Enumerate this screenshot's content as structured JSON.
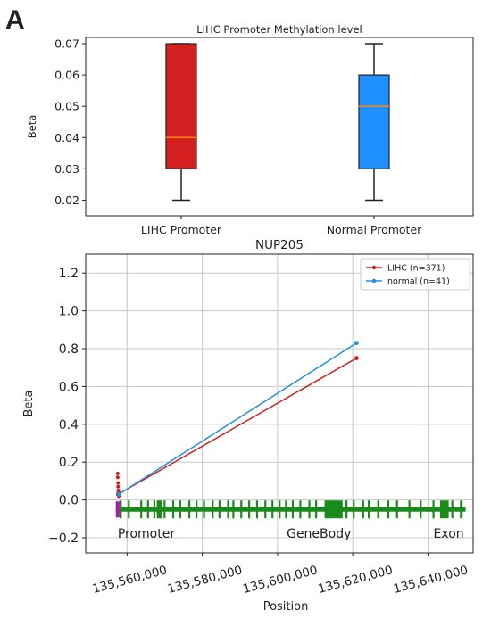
{
  "panel_label": "A",
  "chart_data": [
    {
      "type": "box",
      "title": "LIHC Promoter Methylation level",
      "ylabel": "Beta",
      "xlabel": "",
      "ylim": [
        0.015,
        0.072
      ],
      "yticks": [
        0.02,
        0.03,
        0.04,
        0.05,
        0.06,
        0.07
      ],
      "ytick_labels": [
        "0.02",
        "0.03",
        "0.04",
        "0.05",
        "0.06",
        "0.07"
      ],
      "categories": [
        "LIHC Promoter",
        "Normal Promoter"
      ],
      "boxes": [
        {
          "label": "LIHC Promoter",
          "min": 0.02,
          "q1": 0.03,
          "median": 0.04,
          "q3": 0.07,
          "max": 0.07,
          "color": "#d42020"
        },
        {
          "label": "Normal Promoter",
          "min": 0.02,
          "q1": 0.03,
          "median": 0.05,
          "q3": 0.06,
          "max": 0.07,
          "color": "#1e90ff"
        }
      ],
      "median_color": "#ff8c00",
      "grid": false
    },
    {
      "type": "line",
      "title": "NUP205",
      "xlabel": "Position",
      "ylabel": "Beta",
      "xlim": [
        135549000,
        135652000
      ],
      "ylim": [
        -0.28,
        1.3
      ],
      "xticks": [
        135560000,
        135580000,
        135600000,
        135620000,
        135640000
      ],
      "xtick_labels": [
        "135,560,000",
        "135,580,000",
        "135,600,000",
        "135,620,000",
        "135,640,000"
      ],
      "yticks": [
        -0.2,
        0.0,
        0.2,
        0.4,
        0.6,
        0.8,
        1.0,
        1.2
      ],
      "ytick_labels": [
        "−0.2",
        "0.0",
        "0.2",
        "0.4",
        "0.6",
        "0.8",
        "1.0",
        "1.2"
      ],
      "grid": true,
      "legend_position": "top-right",
      "series": [
        {
          "name": "LIHC (n=371)",
          "color": "#c8201e",
          "points": [
            [
              135557600,
              0.03
            ],
            [
              135621000,
              0.75
            ]
          ],
          "promoter_points": [
            [
              135557500,
              0.14
            ],
            [
              135557500,
              0.12
            ],
            [
              135557600,
              0.09
            ],
            [
              135557600,
              0.07
            ],
            [
              135557700,
              0.05
            ],
            [
              135557700,
              0.04
            ],
            [
              135557800,
              0.02
            ]
          ]
        },
        {
          "name": "normal (n=41)",
          "color": "#1f8fe0",
          "points": [
            [
              135557800,
              0.03
            ],
            [
              135621000,
              0.83
            ]
          ],
          "promoter_points": []
        }
      ],
      "gene_track": {
        "y": -0.05,
        "start": 135557000,
        "end": 135650000,
        "track_color": "#1a8a1a",
        "promoter_color": "#a020a0",
        "promoter_range": [
          135557000,
          135558000
        ],
        "exons": [
          [
            135558000,
            135558600
          ],
          [
            135560200,
            135560700
          ],
          [
            135563500,
            135564000
          ],
          [
            135565300,
            135565800
          ],
          [
            135567000,
            135567400
          ],
          [
            135567900,
            135569200
          ],
          [
            135569700,
            135570100
          ],
          [
            135572000,
            135572400
          ],
          [
            135573800,
            135574400
          ],
          [
            135576300,
            135576800
          ],
          [
            135578200,
            135578600
          ],
          [
            135580200,
            135580700
          ],
          [
            135582500,
            135582900
          ],
          [
            135584300,
            135584800
          ],
          [
            135586600,
            135587000
          ],
          [
            135588000,
            135588500
          ],
          [
            135590100,
            135590600
          ],
          [
            135592200,
            135592600
          ],
          [
            135594300,
            135594700
          ],
          [
            135596500,
            135597000
          ],
          [
            135598400,
            135598800
          ],
          [
            135600300,
            135600800
          ],
          [
            135602000,
            135602400
          ],
          [
            135603800,
            135604200
          ],
          [
            135605800,
            135606300
          ],
          [
            135608200,
            135608600
          ],
          [
            135610000,
            135610400
          ],
          [
            135612500,
            135617300
          ],
          [
            135618000,
            135618600
          ],
          [
            135620000,
            135620500
          ],
          [
            135622500,
            135623000
          ],
          [
            135624000,
            135624500
          ],
          [
            135626500,
            135627000
          ],
          [
            135629200,
            135629700
          ],
          [
            135631500,
            135632000
          ],
          [
            135634800,
            135635300
          ],
          [
            135637800,
            135638300
          ],
          [
            135641200,
            135641700
          ],
          [
            135643200,
            135645500
          ],
          [
            135646200,
            135646700
          ],
          [
            135648500,
            135649200
          ]
        ],
        "labels": [
          {
            "text": "Promoter",
            "x": 135557500
          },
          {
            "text": "GeneBody",
            "x": 135611000
          },
          {
            "text": "Exon",
            "x": 135645500
          }
        ]
      }
    }
  ]
}
